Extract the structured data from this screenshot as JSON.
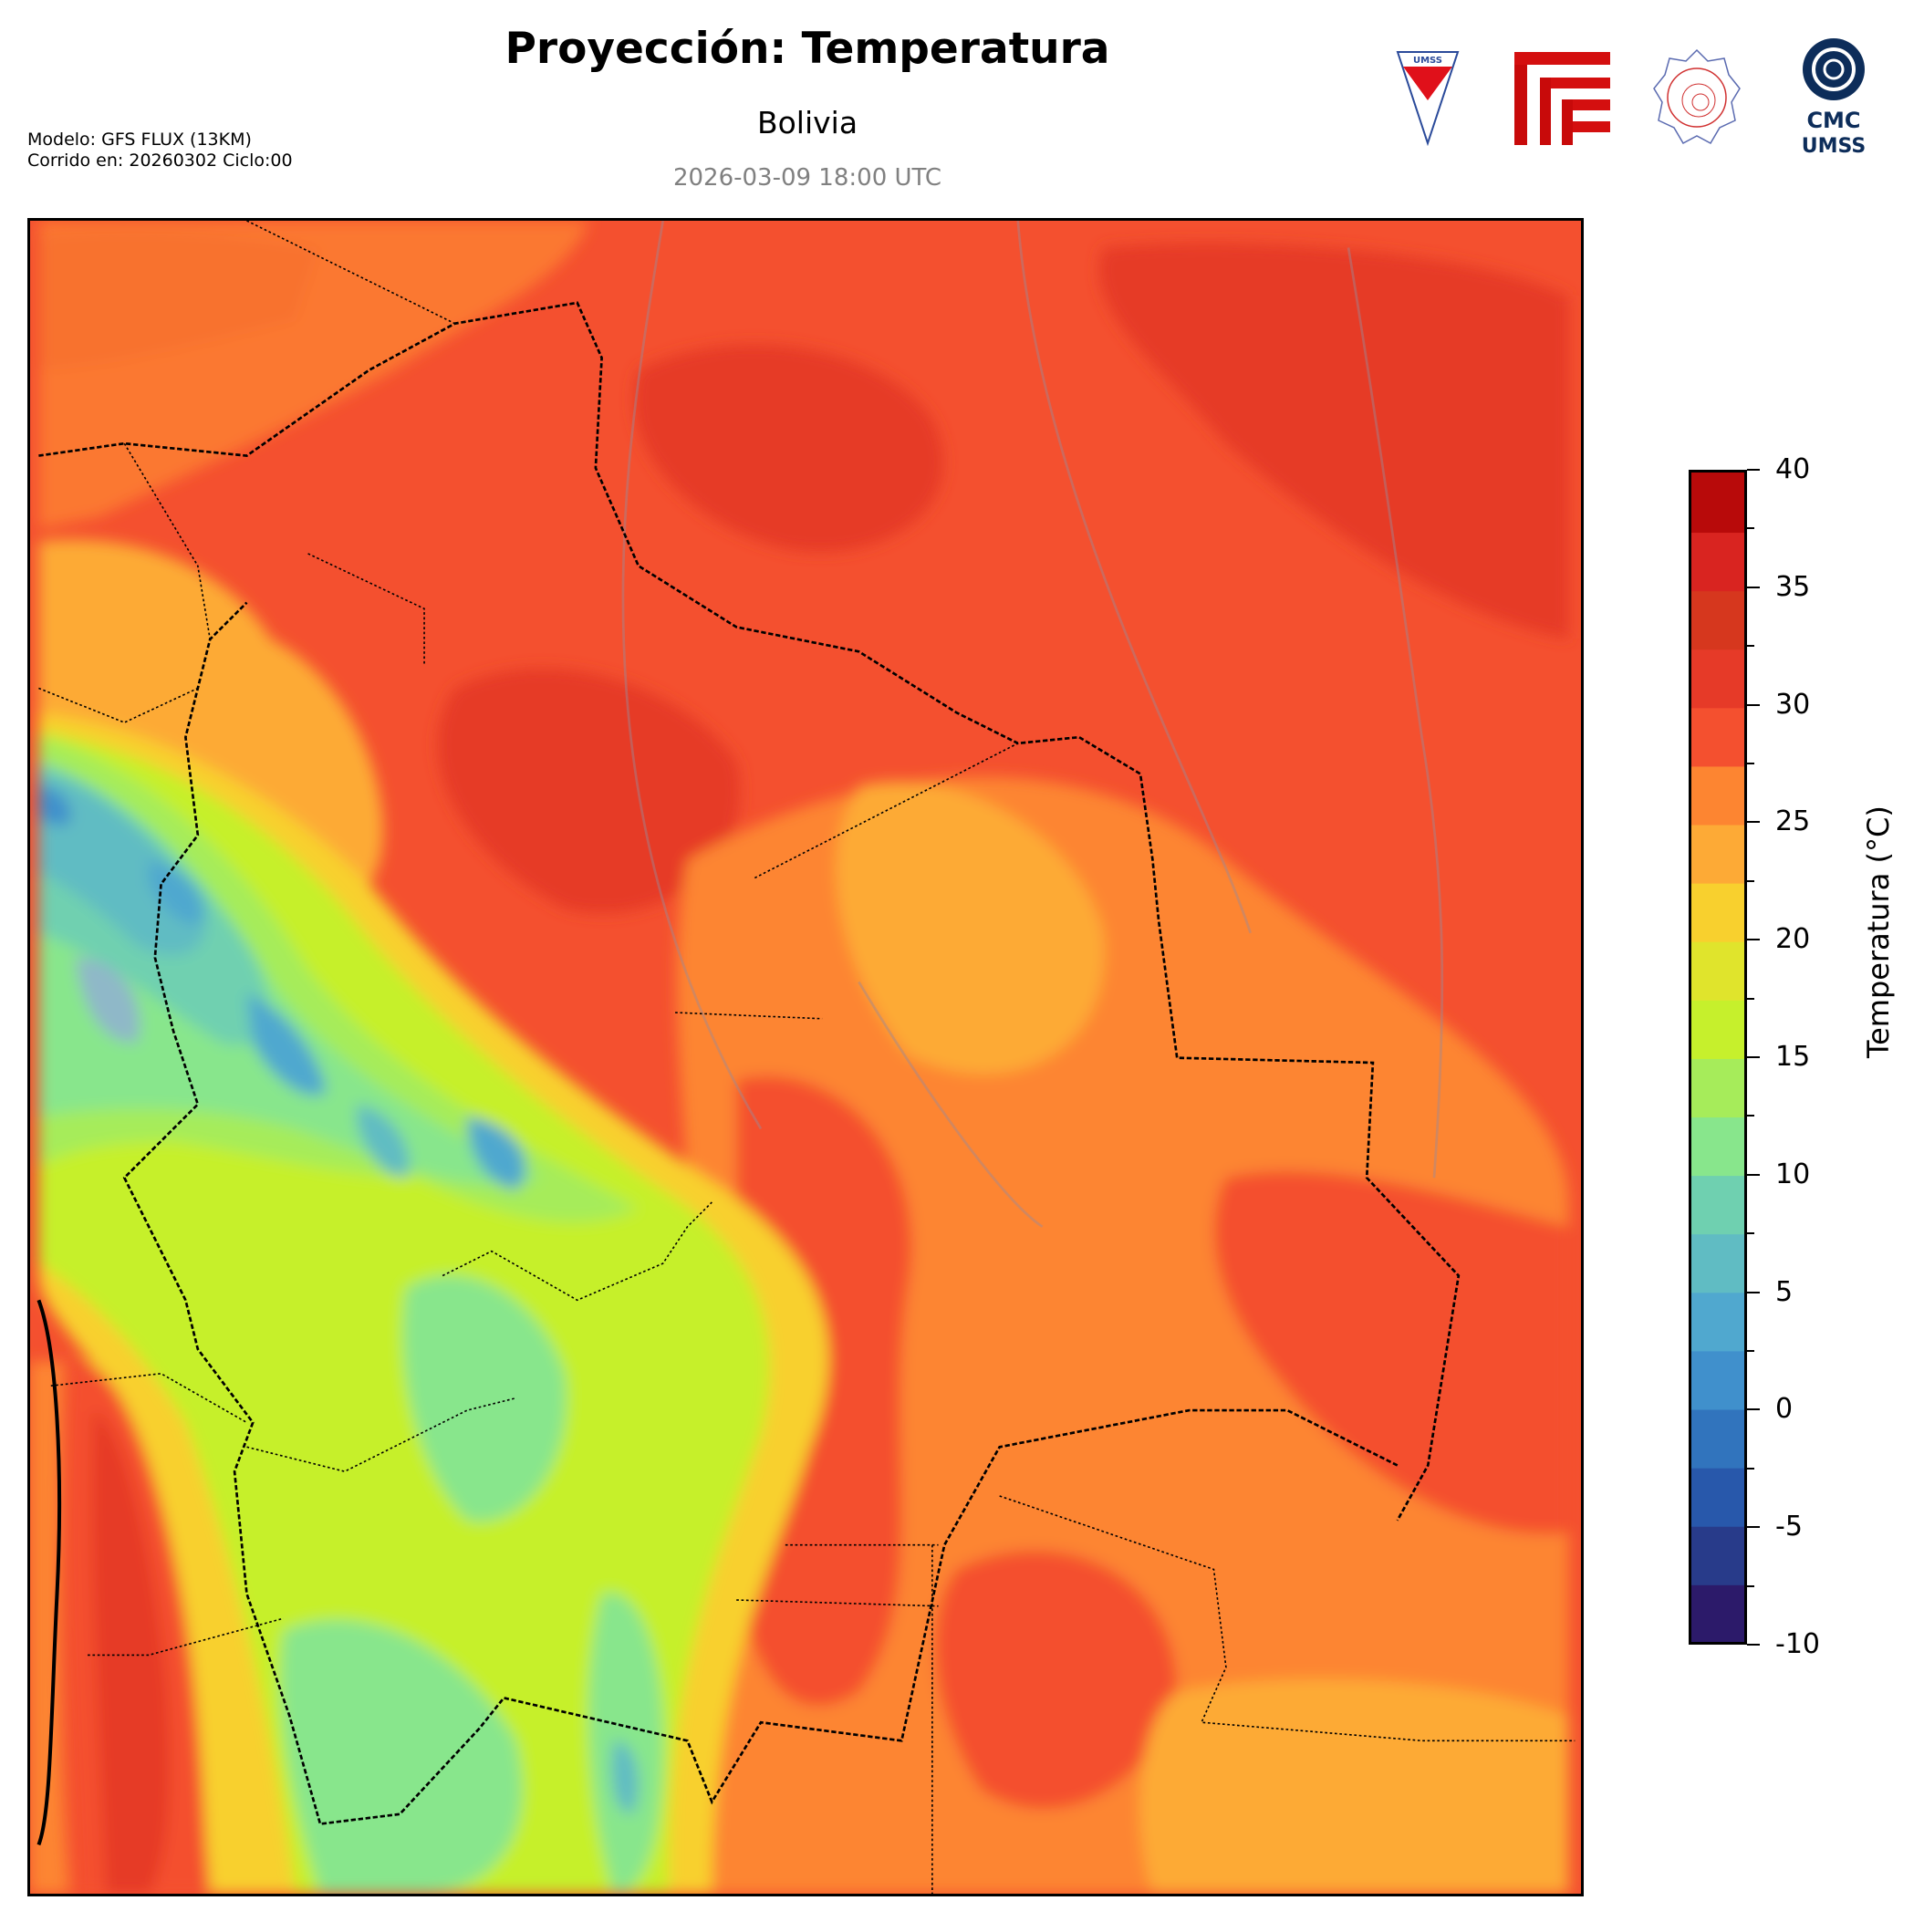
{
  "header": {
    "title": "Proyección: Temperatura",
    "subtitle": "Bolivia",
    "datetime": "2026-03-09 18:00 UTC",
    "model": "Modelo: GFS FLUX (13KM)",
    "run": "Corrido en: 20260302 Ciclo:00"
  },
  "logos": {
    "umss_text": "UMSS",
    "cmc_line1": "CMC",
    "cmc_line2": "UMSS"
  },
  "colorbar": {
    "label": "Temperatura (°C)",
    "min": -10,
    "max": 40,
    "step": 2.5,
    "ticks": [
      40,
      35,
      30,
      25,
      20,
      15,
      10,
      5,
      0,
      -5,
      -10
    ],
    "tick_labels": [
      "40",
      "35",
      "30",
      "25",
      "20",
      "15",
      "10",
      "5",
      "0",
      "-5",
      "-10"
    ],
    "colors": [
      "#2c1a6a",
      "#283b8a",
      "#2858ab",
      "#3174bd",
      "#4090cc",
      "#50a8cf",
      "#60bcc3",
      "#6fd0b0",
      "#88e68c",
      "#a6ec5a",
      "#c6f02c",
      "#e0e42c",
      "#f8d02e",
      "#fdaa36",
      "#fd8531",
      "#f4502f",
      "#e63a28",
      "#d6371e",
      "#d92420",
      "#b80a0a"
    ]
  }
}
